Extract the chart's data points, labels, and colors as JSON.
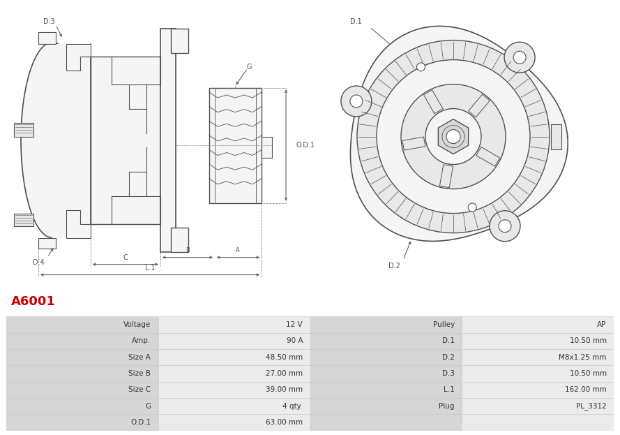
{
  "title": "A6001",
  "title_color": "#cc0000",
  "bg_color": "#ffffff",
  "table_rows": [
    [
      "Voltage",
      "12 V",
      "Pulley",
      "AP"
    ],
    [
      "Amp.",
      "90 A",
      "D.1",
      "10.50 mm"
    ],
    [
      "Size A",
      "48.50 mm",
      "D.2",
      "M8x1.25 mm"
    ],
    [
      "Size B",
      "27.00 mm",
      "D.3",
      "10.50 mm"
    ],
    [
      "Size C",
      "39.00 mm",
      "L.1",
      "162.00 mm"
    ],
    [
      "G",
      "4 qty.",
      "Plug",
      "PL_3312"
    ],
    [
      "O.D.1",
      "63.00 mm",
      "",
      ""
    ]
  ],
  "line_color": "#505050",
  "dash_color": "#888888",
  "fill_light": "#f5f5f5",
  "fill_mid": "#e8e8e8",
  "fill_dark": "#d8d8d8",
  "table_label_bg": "#d6d6d6",
  "table_value_bg": "#ebebeb",
  "table_line_color": "#cccccc",
  "table_text_color": "#333333"
}
